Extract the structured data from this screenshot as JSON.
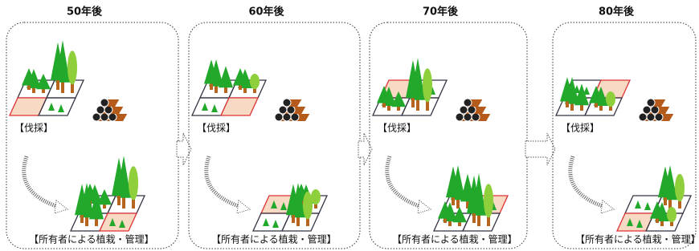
{
  "panels": [
    {
      "title": "50年後",
      "harvest_label": "【伐採】",
      "planting_label": "【所有者による植栽・管理】"
    },
    {
      "title": "60年後",
      "harvest_label": "【伐採】",
      "planting_label": "【所有者による植栽・管理】"
    },
    {
      "title": "70年後",
      "harvest_label": "【伐採】",
      "planting_label": "【所有者による植栽・管理】"
    },
    {
      "title": "80年後",
      "harvest_label": "【伐採】",
      "planting_label": "【所有者による植栽・管理】"
    }
  ]
}
